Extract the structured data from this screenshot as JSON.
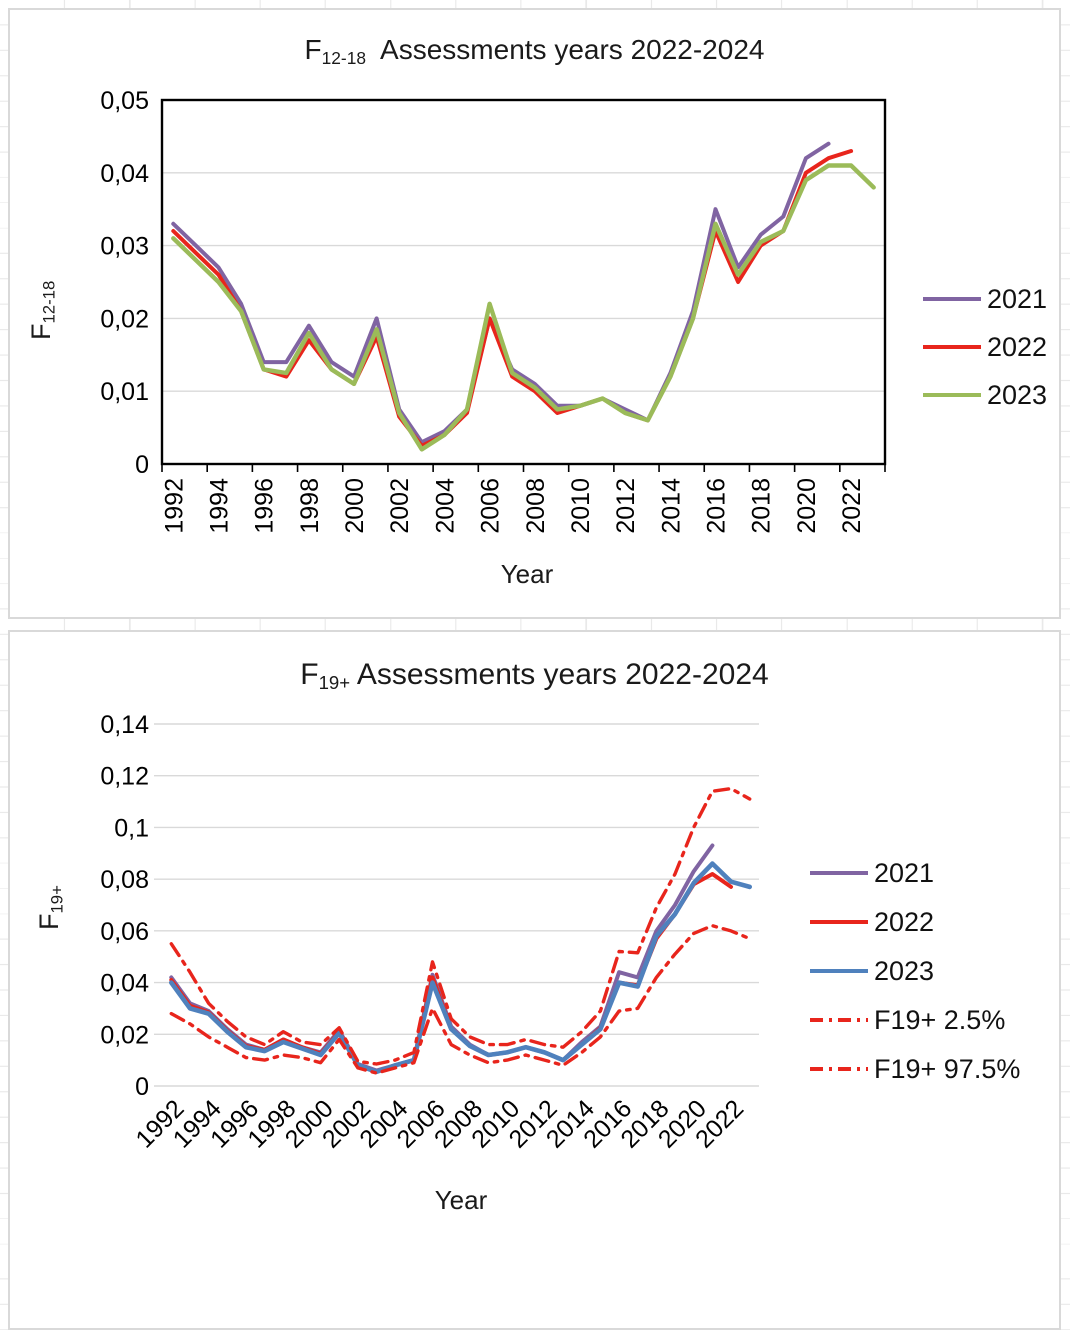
{
  "page": {
    "background_color": "#ffffff",
    "spreadsheet_gridline_color": "#e9e9e9",
    "chart_border_color": "#d9d9d9",
    "plot_gridline_color": "#d9d9d9",
    "axis_color": "#000000"
  },
  "charts": [
    {
      "title": {
        "f": "F",
        "sub": "12-18",
        "rest": "  Assessments years 2022-2024"
      },
      "y_axis": {
        "title_f": "F",
        "title_sub": "12-18"
      },
      "x_axis": {
        "title": "Year"
      }
    },
    {
      "title": {
        "f": "F",
        "sub": "19+",
        "rest": " Assessments years 2022-2024"
      },
      "y_axis": {
        "title_f": "F",
        "title_sub": "19+"
      },
      "x_axis": {
        "title": "Year"
      }
    }
  ],
  "chart_data": [
    {
      "type": "line",
      "title": "F12-18 Assessments years 2022-2024",
      "xlabel": "Year",
      "ylabel": "F12-18",
      "x": [
        1992,
        1993,
        1994,
        1995,
        1996,
        1997,
        1998,
        1999,
        2000,
        2001,
        2002,
        2003,
        2004,
        2005,
        2006,
        2007,
        2008,
        2009,
        2010,
        2011,
        2012,
        2013,
        2014,
        2015,
        2016,
        2017,
        2018,
        2019,
        2020,
        2021,
        2022,
        2023
      ],
      "x_tick_labels": [
        "1992",
        "1994",
        "1996",
        "1998",
        "2000",
        "2002",
        "2004",
        "2006",
        "2008",
        "2010",
        "2012",
        "2014",
        "2016",
        "2018",
        "2020",
        "2022"
      ],
      "y_tick_labels": [
        "0",
        "0,01",
        "0,02",
        "0,03",
        "0,04",
        "0,05"
      ],
      "ylim": [
        0,
        0.05
      ],
      "y_tick_step": 0.01,
      "decimal_separator": ",",
      "grid": true,
      "plot_frame": true,
      "x_label_rotation": -90,
      "legend_position": "right",
      "series": [
        {
          "name": "2021",
          "color": "#8064A2",
          "dash": "solid",
          "width": 4,
          "values": [
            0.033,
            0.03,
            0.027,
            0.022,
            0.014,
            0.014,
            0.019,
            0.014,
            0.012,
            0.02,
            0.0075,
            0.003,
            0.0045,
            0.0075,
            0.02,
            0.013,
            0.011,
            0.008,
            0.008,
            0.009,
            0.0075,
            0.006,
            0.0125,
            0.021,
            0.035,
            0.027,
            0.0315,
            0.034,
            0.042,
            0.044,
            null,
            null
          ]
        },
        {
          "name": "2022",
          "color": "#E8251C",
          "dash": "solid",
          "width": 4,
          "values": [
            0.032,
            0.029,
            0.026,
            0.021,
            0.013,
            0.012,
            0.017,
            0.013,
            0.011,
            0.0175,
            0.0065,
            0.0025,
            0.004,
            0.007,
            0.02,
            0.012,
            0.01,
            0.007,
            0.008,
            0.009,
            0.007,
            0.006,
            0.012,
            0.02,
            0.032,
            0.025,
            0.03,
            0.032,
            0.04,
            0.042,
            0.043,
            null
          ]
        },
        {
          "name": "2023",
          "color": "#9BBB59",
          "dash": "solid",
          "width": 4.4,
          "values": [
            0.031,
            0.028,
            0.025,
            0.021,
            0.013,
            0.0125,
            0.018,
            0.013,
            0.011,
            0.0185,
            0.007,
            0.002,
            0.004,
            0.0075,
            0.022,
            0.0125,
            0.0105,
            0.0075,
            0.008,
            0.009,
            0.007,
            0.006,
            0.012,
            0.02,
            0.033,
            0.026,
            0.0305,
            0.032,
            0.039,
            0.041,
            0.041,
            0.038
          ]
        }
      ]
    },
    {
      "type": "line",
      "title": "F19+ Assessments years 2022-2024",
      "xlabel": "Year",
      "ylabel": "F19+",
      "x": [
        1992,
        1993,
        1994,
        1995,
        1996,
        1997,
        1998,
        1999,
        2000,
        2001,
        2002,
        2003,
        2004,
        2005,
        2006,
        2007,
        2008,
        2009,
        2010,
        2011,
        2012,
        2013,
        2014,
        2015,
        2016,
        2017,
        2018,
        2019,
        2020,
        2021,
        2022,
        2023
      ],
      "x_tick_labels": [
        "1992",
        "1994",
        "1996",
        "1998",
        "2000",
        "2002",
        "2004",
        "2006",
        "2008",
        "2010",
        "2012",
        "2014",
        "2016",
        "2018",
        "2020",
        "2022"
      ],
      "y_tick_labels": [
        "0",
        "0,02",
        "0,04",
        "0,06",
        "0,08",
        "0,1",
        "0,12",
        "0,14"
      ],
      "ylim": [
        0,
        0.14
      ],
      "y_tick_step": 0.02,
      "decimal_separator": ",",
      "grid": true,
      "plot_frame": false,
      "x_label_rotation": -45,
      "legend_position": "right",
      "series": [
        {
          "name": "2021",
          "color": "#8064A2",
          "dash": "solid",
          "width": 4,
          "values": [
            0.042,
            0.032,
            0.029,
            0.022,
            0.016,
            0.014,
            0.018,
            0.015,
            0.013,
            0.0215,
            0.0085,
            0.006,
            0.008,
            0.01,
            0.043,
            0.023,
            0.016,
            0.012,
            0.013,
            0.015,
            0.013,
            0.01,
            0.017,
            0.023,
            0.044,
            0.042,
            0.06,
            0.07,
            0.083,
            0.093,
            null,
            null
          ]
        },
        {
          "name": "2022",
          "color": "#E8251C",
          "dash": "solid",
          "width": 4,
          "values": [
            0.041,
            0.031,
            0.0285,
            0.0215,
            0.0155,
            0.014,
            0.018,
            0.015,
            0.0125,
            0.021,
            0.008,
            0.0055,
            0.008,
            0.01,
            0.042,
            0.022,
            0.0155,
            0.012,
            0.013,
            0.015,
            0.013,
            0.01,
            0.016,
            0.0225,
            0.04,
            0.039,
            0.057,
            0.0665,
            0.078,
            0.082,
            0.077,
            null
          ]
        },
        {
          "name": "2023",
          "color": "#4F81BD",
          "dash": "solid",
          "width": 4.6,
          "values": [
            0.04,
            0.03,
            0.028,
            0.021,
            0.015,
            0.0135,
            0.017,
            0.0145,
            0.012,
            0.0205,
            0.008,
            0.0055,
            0.008,
            0.01,
            0.04,
            0.022,
            0.0155,
            0.012,
            0.013,
            0.015,
            0.013,
            0.01,
            0.016,
            0.022,
            0.04,
            0.0385,
            0.058,
            0.0665,
            0.0785,
            0.086,
            0.079,
            0.077
          ]
        },
        {
          "name": "F19+ 2.5%",
          "color": "#E8251C",
          "dash": "dashdot",
          "width": 3.4,
          "values": [
            0.028,
            0.024,
            0.019,
            0.015,
            0.011,
            0.01,
            0.012,
            0.011,
            0.009,
            0.018,
            0.007,
            0.005,
            0.007,
            0.009,
            0.03,
            0.016,
            0.012,
            0.009,
            0.01,
            0.012,
            0.01,
            0.008,
            0.013,
            0.019,
            0.029,
            0.03,
            0.042,
            0.051,
            0.059,
            0.062,
            0.06,
            0.057
          ]
        },
        {
          "name": "F19+ 97.5%",
          "color": "#E8251C",
          "dash": "dashdot",
          "width": 3.4,
          "values": [
            0.055,
            0.044,
            0.032,
            0.025,
            0.019,
            0.016,
            0.021,
            0.017,
            0.016,
            0.0225,
            0.0095,
            0.0085,
            0.01,
            0.013,
            0.048,
            0.026,
            0.019,
            0.016,
            0.016,
            0.018,
            0.016,
            0.015,
            0.021,
            0.029,
            0.052,
            0.0515,
            0.069,
            0.082,
            0.1,
            0.114,
            0.115,
            0.111
          ]
        }
      ]
    }
  ]
}
